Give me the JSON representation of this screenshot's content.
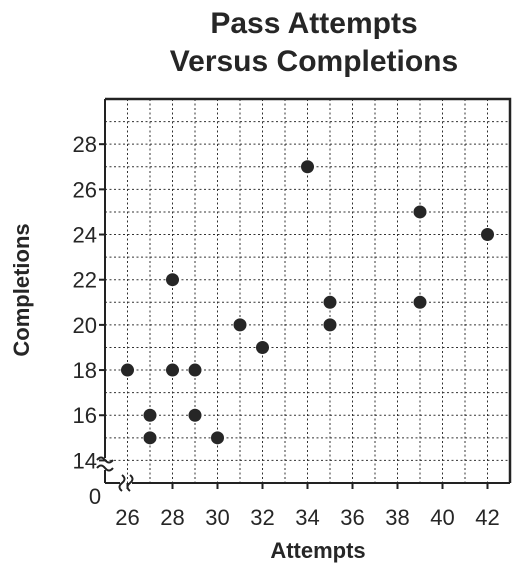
{
  "chart_data": {
    "type": "scatter",
    "title_lines": [
      "Pass Attempts",
      "Versus Completions"
    ],
    "xlabel": "Attempts",
    "ylabel": "Completions",
    "origin_label": "0",
    "x_ticks": [
      26,
      28,
      30,
      32,
      34,
      36,
      38,
      40,
      42
    ],
    "y_ticks": [
      14,
      16,
      18,
      20,
      22,
      24,
      26,
      28
    ],
    "xlim": [
      25,
      43
    ],
    "ylim": [
      13,
      30
    ],
    "axis_breaks": true,
    "grid": true,
    "point_color": "#262626",
    "points": [
      {
        "x": 26,
        "y": 18
      },
      {
        "x": 27,
        "y": 16
      },
      {
        "x": 27,
        "y": 15
      },
      {
        "x": 28,
        "y": 22
      },
      {
        "x": 28,
        "y": 18
      },
      {
        "x": 29,
        "y": 18
      },
      {
        "x": 29,
        "y": 16
      },
      {
        "x": 30,
        "y": 15
      },
      {
        "x": 31,
        "y": 20
      },
      {
        "x": 32,
        "y": 19
      },
      {
        "x": 34,
        "y": 27
      },
      {
        "x": 35,
        "y": 21
      },
      {
        "x": 35,
        "y": 20
      },
      {
        "x": 39,
        "y": 25
      },
      {
        "x": 39,
        "y": 21
      },
      {
        "x": 42,
        "y": 24
      }
    ]
  }
}
